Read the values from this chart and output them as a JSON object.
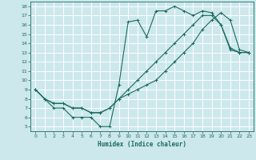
{
  "xlabel": "Humidex (Indice chaleur)",
  "background_color": "#cce8ec",
  "grid_color": "#ffffff",
  "line_color": "#1a6b5e",
  "xlim": [
    -0.5,
    23.5
  ],
  "ylim": [
    4.5,
    18.5
  ],
  "xticks": [
    0,
    1,
    2,
    3,
    4,
    5,
    6,
    7,
    8,
    9,
    10,
    11,
    12,
    13,
    14,
    15,
    16,
    17,
    18,
    19,
    20,
    21,
    22,
    23
  ],
  "yticks": [
    5,
    6,
    7,
    8,
    9,
    10,
    11,
    12,
    13,
    14,
    15,
    16,
    17,
    18
  ],
  "line1_x": [
    0,
    1,
    2,
    3,
    4,
    5,
    6,
    7,
    8,
    9,
    10,
    11,
    12,
    13,
    14,
    15,
    16,
    17,
    18,
    19,
    20,
    21,
    22,
    23
  ],
  "line1_y": [
    9,
    8,
    7,
    7,
    6,
    6,
    6,
    5,
    5,
    9.5,
    16.3,
    16.5,
    14.7,
    17.5,
    17.5,
    18,
    17.5,
    17.0,
    17.5,
    17.3,
    16.0,
    13.5,
    13,
    13
  ],
  "line2_x": [
    0,
    1,
    2,
    3,
    4,
    5,
    6,
    7,
    8,
    9,
    10,
    11,
    12,
    13,
    14,
    15,
    16,
    17,
    18,
    19,
    20,
    21,
    22,
    23
  ],
  "line2_y": [
    9,
    8,
    7.5,
    7.5,
    7,
    7,
    6.5,
    6.5,
    7,
    8,
    9,
    10,
    11,
    12,
    13,
    14,
    15,
    16,
    17,
    17,
    16,
    13.3,
    13,
    13
  ],
  "line3_x": [
    0,
    1,
    2,
    3,
    4,
    5,
    6,
    7,
    8,
    9,
    10,
    11,
    12,
    13,
    14,
    15,
    16,
    17,
    18,
    19,
    20,
    21,
    22,
    23
  ],
  "line3_y": [
    9,
    8,
    7.5,
    7.5,
    7,
    7,
    6.5,
    6.5,
    7,
    8,
    8.5,
    9,
    9.5,
    10,
    11,
    12,
    13,
    14,
    15.5,
    16.5,
    17.3,
    16.5,
    13.3,
    13
  ]
}
